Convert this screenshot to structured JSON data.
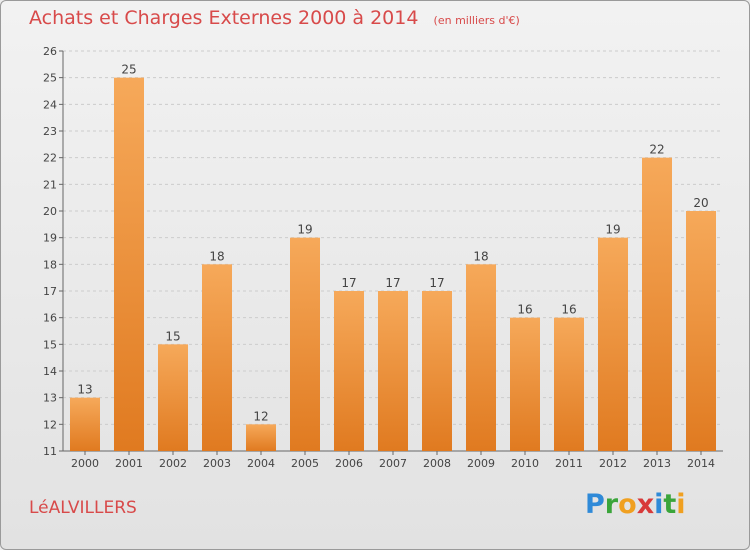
{
  "title": "Achats et Charges Externes 2000 à 2014",
  "subtitle": "(en milliers d'€)",
  "location": "LéALVILLERS",
  "logo": {
    "text": "Proxiti",
    "letters": [
      {
        "char": "P",
        "color": "#2f8ad8"
      },
      {
        "char": "r",
        "color": "#3aa53a"
      },
      {
        "char": "o",
        "color": "#f0a020"
      },
      {
        "char": "x",
        "color": "#d83a3a"
      },
      {
        "char": "i",
        "color": "#2f8ad8"
      },
      {
        "char": "t",
        "color": "#3aa53a"
      },
      {
        "char": "i",
        "color": "#f0a020"
      }
    ]
  },
  "colors": {
    "bar_light": "#f6a95a",
    "bar_dark": "#e07a20",
    "title": "#d84a4a",
    "grid": "#cccccc"
  },
  "chart_data": {
    "type": "bar",
    "title": "Achats et Charges Externes 2000 à 2014",
    "subtitle": "(en milliers d'€)",
    "categories": [
      "2000",
      "2001",
      "2002",
      "2003",
      "2004",
      "2005",
      "2006",
      "2007",
      "2008",
      "2009",
      "2010",
      "2011",
      "2012",
      "2013",
      "2014"
    ],
    "values": [
      13,
      25,
      15,
      18,
      12,
      19,
      17,
      17,
      17,
      18,
      16,
      16,
      19,
      22,
      20
    ],
    "ylim": [
      11,
      26
    ],
    "yticks": [
      11,
      12,
      13,
      14,
      15,
      16,
      17,
      18,
      19,
      20,
      21,
      22,
      23,
      24,
      25,
      26
    ],
    "grid": "horizontal dashed",
    "legend": "none"
  }
}
